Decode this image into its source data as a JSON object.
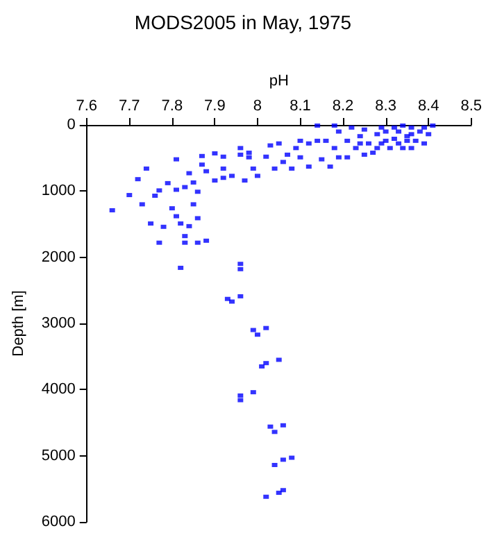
{
  "chart_data": {
    "type": "scatter",
    "title": "MODS2005 in May, 1975",
    "xlabel": "pH",
    "ylabel": "Depth [m]",
    "series": [
      {
        "color": "#0000ff",
        "x": [
          7.82,
          7.96,
          7.96,
          7.96,
          7.93,
          7.94,
          7.99,
          8.0,
          8.02,
          8.01,
          8.02,
          8.05,
          7.96,
          7.96,
          7.99,
          8.03,
          8.04,
          8.06,
          8.04,
          8.06,
          8.08,
          8.02,
          8.05,
          8.06,
          7.66,
          7.7,
          7.72,
          7.74,
          7.73,
          7.75,
          7.76,
          7.77,
          7.78,
          7.77,
          7.79,
          7.81,
          7.81,
          7.8,
          7.81,
          7.82,
          7.83,
          7.83,
          7.84,
          7.84,
          7.83,
          7.85,
          7.86,
          7.86,
          7.85,
          7.87,
          7.87,
          7.88,
          7.86,
          7.88,
          7.9,
          7.9,
          7.92,
          7.92,
          7.92,
          7.94,
          7.96,
          7.96,
          7.97,
          7.98,
          7.99,
          8.0,
          8.02,
          8.03,
          8.04,
          8.05,
          8.07,
          8.08,
          8.09,
          8.1,
          8.1,
          8.12,
          8.14,
          8.14,
          8.15,
          8.16,
          8.17,
          8.18,
          8.18,
          8.19,
          8.19,
          8.21,
          8.21,
          8.22,
          8.23,
          8.24,
          8.25,
          8.25,
          8.26,
          8.27,
          8.28,
          8.29,
          8.29,
          8.3,
          8.31,
          8.32,
          8.32,
          8.33,
          8.34,
          8.34,
          8.35,
          8.36,
          8.36,
          8.37,
          8.38,
          8.39,
          8.39,
          8.4,
          8.41,
          8.3,
          8.33,
          8.35,
          8.36,
          8.28,
          8.24,
          8.12,
          8.06,
          7.98
        ],
        "values": [
          2160,
          2100,
          2180,
          2590,
          2630,
          2670,
          3100,
          3170,
          3070,
          3650,
          3600,
          3550,
          4090,
          4160,
          4040,
          4560,
          4640,
          4540,
          5140,
          5060,
          5030,
          5620,
          5560,
          5520,
          1290,
          1060,
          820,
          660,
          1200,
          1490,
          1070,
          990,
          1540,
          1780,
          880,
          520,
          980,
          1260,
          1380,
          1490,
          1680,
          1780,
          1530,
          730,
          940,
          870,
          1410,
          1780,
          1200,
          470,
          600,
          1750,
          1010,
          700,
          430,
          840,
          480,
          800,
          660,
          770,
          350,
          450,
          840,
          420,
          660,
          770,
          480,
          310,
          660,
          280,
          450,
          660,
          350,
          240,
          490,
          630,
          240,
          10,
          520,
          240,
          630,
          10,
          350,
          490,
          100,
          240,
          490,
          40,
          350,
          170,
          450,
          70,
          280,
          420,
          140,
          40,
          280,
          100,
          350,
          40,
          210,
          100,
          350,
          10,
          170,
          350,
          40,
          240,
          100,
          280,
          40,
          140,
          10,
          240,
          280,
          240,
          140,
          350,
          280,
          280,
          560,
          490
        ]
      }
    ],
    "xlim": [
      7.6,
      8.5
    ],
    "xticks": [
      7.6,
      7.7,
      7.8,
      7.9,
      8,
      8.1,
      8.2,
      8.3,
      8.4,
      8.5
    ],
    "ylim": [
      6000,
      0
    ],
    "yticks": [
      0,
      1000,
      2000,
      3000,
      4000,
      5000,
      6000
    ],
    "marker": "square"
  }
}
